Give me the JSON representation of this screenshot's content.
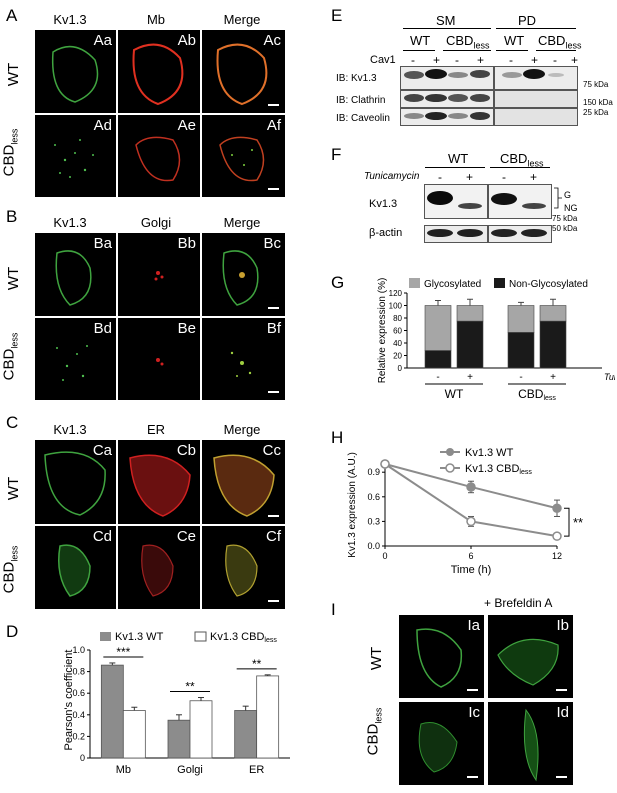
{
  "panels": {
    "A": {
      "letter": "A",
      "headers": [
        "Kv1.3",
        "Mb",
        "Merge"
      ],
      "rows": [
        "WT",
        "CBD"
      ],
      "row_sub": "less",
      "tags": [
        "Aa",
        "Ab",
        "Ac",
        "Ad",
        "Ae",
        "Af"
      ]
    },
    "B": {
      "letter": "B",
      "headers": [
        "Kv1.3",
        "Golgi",
        "Merge"
      ],
      "rows": [
        "WT",
        "CBD"
      ],
      "row_sub": "less",
      "tags": [
        "Ba",
        "Bb",
        "Bc",
        "Bd",
        "Be",
        "Bf"
      ]
    },
    "C": {
      "letter": "C",
      "headers": [
        "Kv1.3",
        "ER",
        "Merge"
      ],
      "rows": [
        "WT",
        "CBD"
      ],
      "row_sub": "less",
      "tags": [
        "Ca",
        "Cb",
        "Cc",
        "Cd",
        "Ce",
        "Cf"
      ]
    },
    "I": {
      "letter": "I",
      "treatment": "+ Brefeldin A",
      "rows": [
        "WT",
        "CBD"
      ],
      "row_sub": "less",
      "tags": [
        "Ia",
        "Ib",
        "Ic",
        "Id"
      ]
    }
  },
  "blotE": {
    "letter": "E",
    "groups": [
      "SM",
      "PD"
    ],
    "lanes": [
      "WT",
      "CBD",
      "WT",
      "CBD"
    ],
    "lane_sub": "less",
    "cav_label": "Cav1",
    "signs": [
      "-",
      "+",
      "-",
      "+",
      "-",
      "+",
      "-",
      "+"
    ],
    "rows": [
      "IB: Kv1.3",
      "IB: Clathrin",
      "IB: Caveolin"
    ],
    "markers": [
      "75 kDa",
      "150 kDa",
      "25 kDa"
    ]
  },
  "blotF": {
    "letter": "F",
    "lanes": [
      "WT",
      "CBD"
    ],
    "lane_sub": "less",
    "treat_label": "Tunicamycin",
    "signs": [
      "-",
      "+",
      "-",
      "+"
    ],
    "rows": [
      "Kv1.3",
      "β-actin"
    ],
    "bands": [
      "G",
      "NG"
    ],
    "markers": [
      "75 kDa",
      "50 kDa"
    ]
  },
  "chart_data": [
    {
      "id": "D",
      "letter": "D",
      "type": "bar",
      "categories": [
        "Mb",
        "Golgi",
        "ER"
      ],
      "series": [
        {
          "name": "Kv1.3 WT",
          "values": [
            0.86,
            0.35,
            0.44
          ],
          "errors": [
            0.02,
            0.05,
            0.04
          ],
          "color": "#8c8c8c"
        },
        {
          "name": "Kv1.3 CBD",
          "name_sub": "less",
          "values": [
            0.44,
            0.53,
            0.76
          ],
          "errors": [
            0.03,
            0.03,
            0.01
          ],
          "color": "#ffffff"
        }
      ],
      "ylabel": "Pearson's coefficient",
      "ylim": [
        0,
        1
      ],
      "yticks": [
        "0",
        "0.2",
        "0.4",
        "0.6",
        "0.8",
        "1.0"
      ],
      "significance": [
        "***",
        "**",
        "**"
      ]
    },
    {
      "id": "G",
      "letter": "G",
      "type": "bar",
      "stacked": true,
      "categories": [
        "-",
        "+",
        "-",
        "+"
      ],
      "groups": [
        "WT",
        "CBD"
      ],
      "group_sub": "less",
      "treat_label": "Tunicamycin",
      "series": [
        {
          "name": "Non-Glycosylated",
          "values": [
            28,
            75,
            57,
            75
          ],
          "errors": [
            4,
            7,
            10,
            8
          ],
          "color": "#1a1a1a"
        },
        {
          "name": "Glycosylated",
          "values": [
            72,
            25,
            43,
            25
          ],
          "errors": [
            8,
            10,
            5,
            10
          ],
          "color": "#a6a6a6"
        }
      ],
      "ylabel": "Relative expression (%)",
      "ylim": [
        0,
        120
      ],
      "yticks": [
        "0",
        "20",
        "40",
        "60",
        "80",
        "100",
        "120"
      ],
      "legend": "top"
    },
    {
      "id": "H",
      "letter": "H",
      "type": "line",
      "x": [
        0,
        6,
        12
      ],
      "series": [
        {
          "name": "Kv1.3 WT",
          "values": [
            1.0,
            0.72,
            0.46
          ],
          "errors": [
            0.02,
            0.07,
            0.1
          ],
          "color": "#8c8c8c",
          "marker": "filled"
        },
        {
          "name": "Kv1.3 CBD",
          "name_sub": "less",
          "values": [
            1.0,
            0.3,
            0.12
          ],
          "errors": [
            0.02,
            0.06,
            0.03
          ],
          "color": "#8c8c8c",
          "marker": "open"
        }
      ],
      "xlabel": "Time (h)",
      "ylabel": "Kv1.3 expression (A.U.)",
      "ylim": [
        0,
        1
      ],
      "xlim": [
        0,
        12
      ],
      "yticks": [
        "0.0",
        "0.3",
        "0.6",
        "0.9"
      ],
      "xticks": [
        "0",
        "6",
        "12"
      ],
      "significance": "**"
    }
  ]
}
